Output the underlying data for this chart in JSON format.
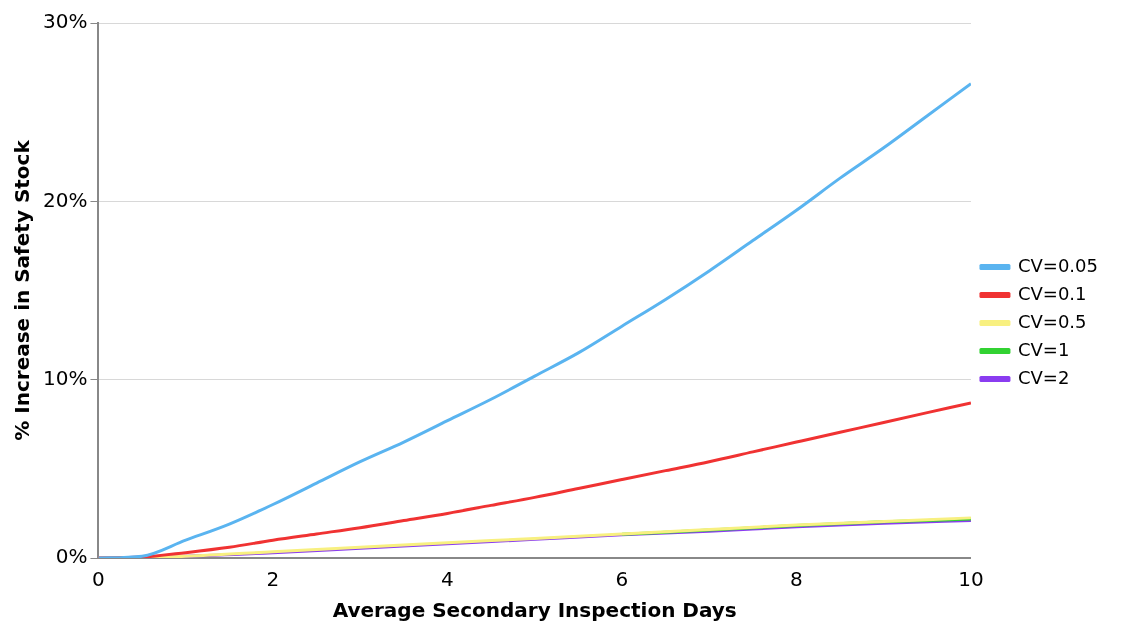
{
  "chart_data": {
    "type": "line",
    "xlabel": "Average Secondary Inspection Days",
    "ylabel": "% Increase in Safety Stock",
    "xlim": [
      0,
      10
    ],
    "xticks": [
      0,
      2,
      4,
      6,
      8,
      10
    ],
    "ylim": [
      0,
      30
    ],
    "yticks": [
      {
        "value": 0,
        "label": "0%"
      },
      {
        "value": 10,
        "label": "10%"
      },
      {
        "value": 20,
        "label": "20%"
      },
      {
        "value": 30,
        "label": "30%"
      }
    ],
    "grid": "y",
    "legend": "right",
    "marker": "none",
    "line_style": "solid",
    "series": [
      {
        "name": "CV=0.05",
        "color": "#5ab4f0",
        "x": [
          0,
          0.5,
          1,
          1.5,
          2,
          2.5,
          3,
          3.5,
          4,
          4.5,
          5,
          5.5,
          6,
          6.5,
          7,
          7.5,
          8,
          8.5,
          9,
          9.5,
          10
        ],
        "values": [
          0,
          0.1,
          1.0,
          1.9,
          3.0,
          4.2,
          5.4,
          6.5,
          7.7,
          8.9,
          10.2,
          11.5,
          13.0,
          14.5,
          16.1,
          17.8,
          19.5,
          21.3,
          23.0,
          24.8,
          26.6
        ]
      },
      {
        "name": "CV=0.1",
        "color": "#f03232",
        "x": [
          0,
          0.5,
          1,
          1.5,
          2,
          2.5,
          3,
          3.5,
          4,
          4.5,
          5,
          5.5,
          6,
          6.5,
          7,
          7.5,
          8,
          8.5,
          9,
          9.5,
          10
        ],
        "values": [
          0,
          0.05,
          0.3,
          0.6,
          1.0,
          1.35,
          1.7,
          2.1,
          2.5,
          2.95,
          3.4,
          3.9,
          4.4,
          4.9,
          5.4,
          5.95,
          6.5,
          7.05,
          7.6,
          8.15,
          8.7
        ]
      },
      {
        "name": "CV=0.5",
        "color": "#f8f080",
        "x": [
          0,
          1,
          2,
          3,
          4,
          5,
          6,
          7,
          8,
          9,
          10
        ],
        "values": [
          0,
          0.1,
          0.35,
          0.6,
          0.85,
          1.1,
          1.35,
          1.6,
          1.85,
          2.05,
          2.25
        ]
      },
      {
        "name": "CV=1",
        "color": "#32d232",
        "x": [
          6,
          7,
          8,
          9,
          10
        ],
        "values": [
          1.33,
          1.57,
          1.82,
          2.03,
          2.18
        ]
      },
      {
        "name": "CV=2",
        "color": "#8a3cf0",
        "x": [
          0,
          1,
          2,
          3,
          4,
          5,
          6,
          7,
          8,
          9,
          10
        ],
        "values": [
          0,
          0.1,
          0.3,
          0.55,
          0.8,
          1.05,
          1.3,
          1.5,
          1.75,
          1.95,
          2.1
        ]
      }
    ]
  }
}
